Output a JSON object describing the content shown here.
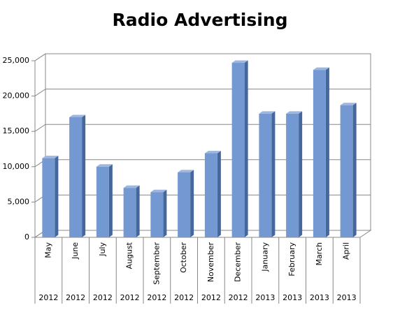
{
  "chart_data": {
    "type": "bar",
    "title": "Radio Advertising",
    "categories": [
      "May",
      "June",
      "July",
      "August",
      "September",
      "October",
      "November",
      "December",
      "January",
      "February",
      "March",
      "April"
    ],
    "years": [
      "2012",
      "2012",
      "2012",
      "2012",
      "2012",
      "2012",
      "2012",
      "2012",
      "2013",
      "2013",
      "2013",
      "2013"
    ],
    "values": [
      11200,
      17000,
      10000,
      7000,
      6400,
      9200,
      11900,
      24700,
      17500,
      17500,
      23700,
      18700
    ],
    "color": "#7398d2",
    "ylim": [
      0,
      25000
    ],
    "yticks": [
      0,
      {
        "value": 5000,
        "label": "5,000"
      },
      {
        "value": 10000,
        "label": "10,000"
      },
      {
        "value": 15000,
        "label": "15,000"
      },
      {
        "value": 20000,
        "label": "20,000"
      },
      {
        "value": 25000,
        "label": "25,000"
      }
    ],
    "grid": true
  }
}
